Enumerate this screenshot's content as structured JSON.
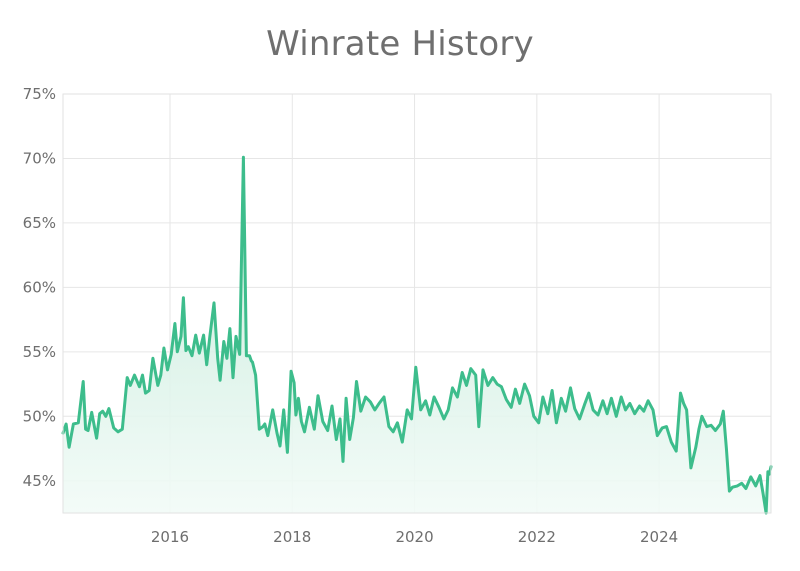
{
  "chart_data": {
    "type": "area",
    "title": "Winrate History",
    "xlabel": "",
    "ylabel": "",
    "xlim": [
      2014.25,
      2025.83
    ],
    "ylim": [
      42.5,
      75
    ],
    "x_ticks": [
      2016,
      2018,
      2020,
      2022,
      2024
    ],
    "x_tick_labels": [
      "2016",
      "2018",
      "2020",
      "2022",
      "2024"
    ],
    "y_ticks": [
      45,
      50,
      55,
      60,
      65,
      70,
      75
    ],
    "y_tick_labels": [
      "45%",
      "50%",
      "55%",
      "60%",
      "65%",
      "70%",
      "75%"
    ],
    "grid": true,
    "legend": "none",
    "colors": {
      "line": "#3dbd8c",
      "fill_top": "#bfe8d6",
      "fill_bottom": "#f2fbf7",
      "grid": "#e6e6e6",
      "text": "#6e6e6e",
      "title": "#6f6f6f"
    },
    "series": [
      {
        "x": [
          2014.25,
          2014.3,
          2014.35,
          2014.42,
          2014.5,
          2014.58,
          2014.62,
          2014.66,
          2014.72,
          2014.8,
          2014.85,
          2014.9,
          2014.95,
          2015.0,
          2015.08,
          2015.15,
          2015.22,
          2015.3,
          2015.35,
          2015.42,
          2015.5,
          2015.55,
          2015.6,
          2015.66,
          2015.72,
          2015.8,
          2015.85,
          2015.9,
          2015.96,
          2016.02,
          2016.08,
          2016.12,
          2016.18,
          2016.22,
          2016.26,
          2016.3,
          2016.36,
          2016.42,
          2016.48,
          2016.55,
          2016.6,
          2016.65,
          2016.72,
          2016.78,
          2016.82,
          2016.88,
          2016.93,
          2016.98,
          2017.03,
          2017.08,
          2017.14,
          2017.2,
          2017.25,
          2017.3,
          2017.33,
          2017.35,
          2017.4,
          2017.46,
          2017.52,
          2017.55,
          2017.6,
          2017.68,
          2017.75,
          2017.8,
          2017.86,
          2017.92,
          2017.98,
          2018.03,
          2018.06,
          2018.1,
          2018.15,
          2018.2,
          2018.28,
          2018.36,
          2018.42,
          2018.5,
          2018.58,
          2018.65,
          2018.72,
          2018.78,
          2018.83,
          2018.88,
          2018.94,
          2019.0,
          2019.05,
          2019.12,
          2019.2,
          2019.28,
          2019.35,
          2019.42,
          2019.5,
          2019.58,
          2019.65,
          2019.72,
          2019.8,
          2019.88,
          2019.95,
          2020.02,
          2020.1,
          2020.18,
          2020.25,
          2020.32,
          2020.4,
          2020.48,
          2020.55,
          2020.62,
          2020.7,
          2020.78,
          2020.85,
          2020.92,
          2021.0,
          2021.05,
          2021.12,
          2021.2,
          2021.28,
          2021.35,
          2021.42,
          2021.5,
          2021.58,
          2021.65,
          2021.72,
          2021.8,
          2021.88,
          2021.95,
          2022.03,
          2022.1,
          2022.18,
          2022.25,
          2022.32,
          2022.4,
          2022.47,
          2022.55,
          2022.62,
          2022.7,
          2022.78,
          2022.85,
          2022.92,
          2023.0,
          2023.08,
          2023.15,
          2023.22,
          2023.3,
          2023.38,
          2023.45,
          2023.52,
          2023.6,
          2023.68,
          2023.75,
          2023.82,
          2023.9,
          2023.97,
          2024.05,
          2024.12,
          2024.2,
          2024.28,
          2024.35,
          2024.4,
          2024.45,
          2024.52,
          2024.6,
          2024.65,
          2024.7,
          2024.78,
          2024.85,
          2024.92,
          2025.0,
          2025.05,
          2025.1,
          2025.15,
          2025.2,
          2025.28,
          2025.35,
          2025.42,
          2025.5,
          2025.58,
          2025.65,
          2025.7,
          2025.75,
          2025.78,
          2025.8,
          2025.83
        ],
        "y": [
          48.7,
          49.4,
          47.6,
          49.4,
          49.5,
          52.7,
          49.0,
          48.9,
          50.3,
          48.3,
          50.2,
          50.4,
          50.0,
          50.6,
          49.1,
          48.8,
          49.0,
          53.0,
          52.4,
          53.2,
          52.3,
          53.2,
          51.8,
          52.0,
          54.5,
          52.4,
          53.2,
          55.3,
          53.6,
          54.8,
          57.2,
          55.0,
          56.2,
          59.2,
          55.1,
          55.4,
          54.7,
          56.3,
          54.9,
          56.3,
          54.0,
          56.1,
          58.8,
          54.5,
          52.8,
          55.8,
          54.5,
          56.8,
          53.0,
          56.2,
          54.8,
          70.1,
          54.7,
          54.7,
          54.3,
          54.2,
          53.2,
          49.0,
          49.2,
          49.4,
          48.5,
          50.5,
          48.7,
          47.7,
          50.5,
          47.2,
          53.5,
          52.6,
          50.1,
          51.4,
          49.6,
          48.8,
          50.7,
          49.0,
          51.6,
          49.6,
          48.9,
          50.8,
          48.2,
          49.8,
          46.5,
          51.4,
          48.2,
          49.9,
          52.7,
          50.4,
          51.5,
          51.1,
          50.5,
          51.0,
          51.5,
          49.2,
          48.8,
          49.5,
          48.0,
          50.5,
          49.8,
          53.8,
          50.5,
          51.2,
          50.1,
          51.5,
          50.7,
          49.8,
          50.5,
          52.2,
          51.5,
          53.4,
          52.4,
          53.7,
          53.2,
          49.2,
          53.6,
          52.4,
          53.0,
          52.5,
          52.3,
          51.3,
          50.7,
          52.1,
          51.0,
          52.5,
          51.6,
          50.0,
          49.5,
          51.5,
          50.2,
          52.0,
          49.5,
          51.4,
          50.4,
          52.2,
          50.6,
          49.8,
          50.9,
          51.8,
          50.5,
          50.1,
          51.2,
          50.2,
          51.4,
          50.0,
          51.5,
          50.5,
          51.0,
          50.2,
          50.8,
          50.4,
          51.2,
          50.5,
          48.5,
          49.1,
          49.2,
          48.0,
          47.3,
          51.8,
          51.0,
          50.5,
          46.0,
          47.6,
          49.0,
          50.0,
          49.2,
          49.3,
          48.9,
          49.4,
          50.4,
          47.5,
          44.2,
          44.5,
          44.6,
          44.8,
          44.4,
          45.3,
          44.6,
          45.4,
          44.0,
          42.5,
          45.7,
          45.5,
          46.1
        ]
      }
    ]
  }
}
